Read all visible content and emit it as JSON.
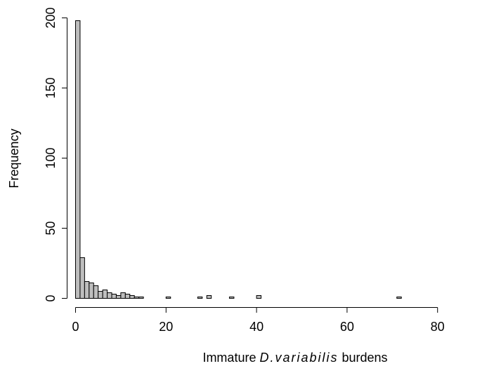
{
  "chart_data": {
    "type": "bar",
    "title": "",
    "xlabel_prefix": "Immature ",
    "xlabel_italic": "D.variabilis",
    "xlabel_suffix": " burdens",
    "ylabel": "Frequency",
    "bin_width": 1,
    "xlim": [
      0,
      92
    ],
    "ylim": [
      0,
      200
    ],
    "x_ticks": [
      0,
      20,
      40,
      60,
      80
    ],
    "y_ticks": [
      0,
      50,
      100,
      150,
      200
    ],
    "bins": [
      {
        "x": 0,
        "count": 198
      },
      {
        "x": 1,
        "count": 29
      },
      {
        "x": 2,
        "count": 12
      },
      {
        "x": 3,
        "count": 11
      },
      {
        "x": 4,
        "count": 9
      },
      {
        "x": 5,
        "count": 5
      },
      {
        "x": 6,
        "count": 6
      },
      {
        "x": 7,
        "count": 4
      },
      {
        "x": 8,
        "count": 3
      },
      {
        "x": 9,
        "count": 2
      },
      {
        "x": 10,
        "count": 4
      },
      {
        "x": 11,
        "count": 3
      },
      {
        "x": 12,
        "count": 2
      },
      {
        "x": 13,
        "count": 1
      },
      {
        "x": 14,
        "count": 1
      },
      {
        "x": 20,
        "count": 1
      },
      {
        "x": 27,
        "count": 1
      },
      {
        "x": 29,
        "count": 2
      },
      {
        "x": 34,
        "count": 1
      },
      {
        "x": 40,
        "count": 2
      },
      {
        "x": 71,
        "count": 1
      }
    ],
    "grid": false,
    "legend": "none"
  }
}
